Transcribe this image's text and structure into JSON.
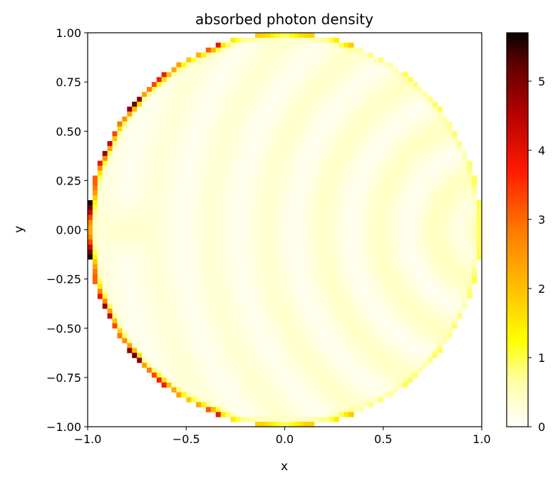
{
  "chart_data": {
    "type": "heatmap",
    "title": "absorbed photon density",
    "xlabel": "x",
    "ylabel": "y",
    "xlim": [
      -1.0,
      1.0
    ],
    "ylim": [
      -1.0,
      1.0
    ],
    "xticks": [
      {
        "value": -1.0,
        "label": "−1.0"
      },
      {
        "value": -0.5,
        "label": "−0.5"
      },
      {
        "value": 0.0,
        "label": "0.0"
      },
      {
        "value": 0.5,
        "label": "0.5"
      },
      {
        "value": 1.0,
        "label": "1.0"
      }
    ],
    "yticks": [
      {
        "value": 1.0,
        "label": "1.00"
      },
      {
        "value": 0.75,
        "label": "0.75"
      },
      {
        "value": 0.5,
        "label": "0.50"
      },
      {
        "value": 0.25,
        "label": "0.25"
      },
      {
        "value": 0.0,
        "label": "0.00"
      },
      {
        "value": -0.25,
        "label": "−0.25"
      },
      {
        "value": -0.5,
        "label": "−0.50"
      },
      {
        "value": -0.75,
        "label": "−0.75"
      },
      {
        "value": -1.0,
        "label": "−1.00"
      }
    ],
    "domain": "unit disk",
    "colormap": "hot_r",
    "colorbar": {
      "min": 0,
      "max": 5.7,
      "ticks": [
        {
          "value": 0,
          "label": "0"
        },
        {
          "value": 1,
          "label": "1"
        },
        {
          "value": 2,
          "label": "2"
        },
        {
          "value": 3,
          "label": "3"
        },
        {
          "value": 4,
          "label": "4"
        },
        {
          "value": 5,
          "label": "5"
        }
      ]
    },
    "features": {
      "interior_range": [
        0.0,
        1.0
      ],
      "right_edge_peak": 1.0,
      "left_edge_peak": 5.7,
      "top_bottom_edge_peak": 1.5
    }
  }
}
